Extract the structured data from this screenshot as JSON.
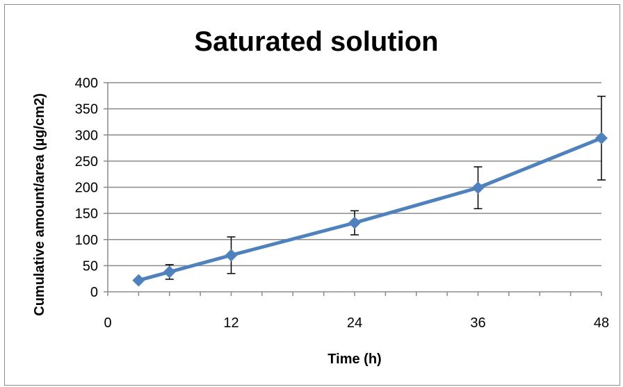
{
  "chart_data": {
    "type": "line",
    "title": "Saturated solution",
    "xlabel": "Time (h)",
    "ylabel": "Cumulative amount/area (µg/cm2)",
    "xlim": [
      0,
      48
    ],
    "ylim": [
      0,
      400
    ],
    "x_ticks": [
      "0",
      "12",
      "24",
      "36",
      "48"
    ],
    "y_ticks": [
      "0",
      "50",
      "100",
      "150",
      "200",
      "250",
      "300",
      "350",
      "400"
    ],
    "x_minor_step": 3,
    "grid": "horizontal",
    "legend": "none",
    "series": [
      {
        "color": "#4f81bd",
        "marker": "diamond",
        "x": [
          3,
          6,
          12,
          24,
          36,
          48
        ],
        "y": [
          22,
          38,
          70,
          132,
          199,
          294
        ],
        "error": [
          0,
          14,
          35,
          23,
          40,
          80
        ]
      }
    ]
  }
}
